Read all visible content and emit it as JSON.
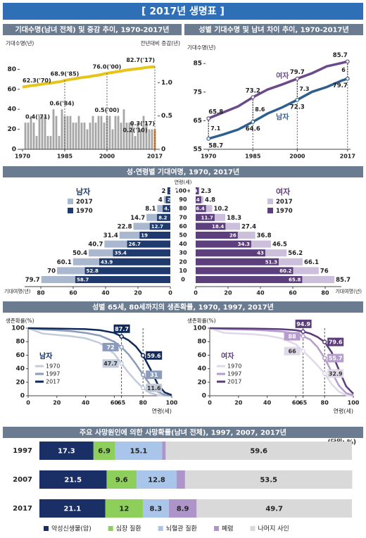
{
  "title": "[ 2017년 생명표 ]",
  "chart_data": [
    {
      "type": "combo",
      "title": "기대수명(남녀 전체) 및 증감 추이, 1970-2017년",
      "ylabel": "기대수명(년)",
      "y2label": "전년대비 증감(년)",
      "x": [
        1970,
        1971,
        1972,
        1973,
        1974,
        1975,
        1976,
        1977,
        1978,
        1979,
        1980,
        1981,
        1982,
        1983,
        1984,
        1985,
        1986,
        1987,
        1988,
        1989,
        1990,
        1991,
        1992,
        1993,
        1994,
        1995,
        1996,
        1997,
        1998,
        1999,
        2000,
        2001,
        2002,
        2003,
        2004,
        2005,
        2006,
        2007,
        2008,
        2009,
        2010,
        2011,
        2012,
        2013,
        2014,
        2015,
        2016,
        2017
      ],
      "xlim": [
        1969,
        2018
      ],
      "xticks": [
        1970,
        1985,
        2000,
        2017
      ],
      "ylim": [
        0,
        100
      ],
      "yticks": [
        0,
        20,
        40,
        60,
        80
      ],
      "y2lim": [
        0,
        1.5
      ],
      "y2ticks": [
        0,
        0.5,
        {
          "value": 1,
          "label": "1.0"
        }
      ],
      "last_color": "#e07b28",
      "series": [
        {
          "kind": "line",
          "color": "#e8c41a",
          "values": [
            62.3,
            62.7,
            63.1,
            63.6,
            64.0,
            64.2,
            64.7,
            65.2,
            65.7,
            65.9,
            66.1,
            66.7,
            67.2,
            67.4,
            68.0,
            68.9,
            69.4,
            69.9,
            70.3,
            70.7,
            71.3,
            71.7,
            72.1,
            72.4,
            72.8,
            73.3,
            73.7,
            74.2,
            74.7,
            75.5,
            76.0,
            76.5,
            76.8,
            77.3,
            77.8,
            78.2,
            78.8,
            79.2,
            79.6,
            80.0,
            80.2,
            80.6,
            80.9,
            81.4,
            81.8,
            82.1,
            82.4,
            82.7
          ],
          "value_labels": [
            "62.3('70)",
            null,
            null,
            null,
            null,
            null,
            null,
            null,
            null,
            null,
            null,
            null,
            null,
            null,
            null,
            "68.9('85)",
            null,
            null,
            null,
            null,
            null,
            null,
            null,
            null,
            null,
            null,
            null,
            null,
            null,
            null,
            "76.0('00)",
            null,
            null,
            null,
            null,
            null,
            null,
            null,
            null,
            null,
            null,
            null,
            null,
            null,
            null,
            null,
            null,
            "82.7('17)"
          ]
        },
        {
          "kind": "bar",
          "axis": "y2",
          "color": "#a6a6a6",
          "values": [
            null,
            0.4,
            0.4,
            0.5,
            0.4,
            0.2,
            0.5,
            0.5,
            0.5,
            0.2,
            0.2,
            0.6,
            0.5,
            0.2,
            0.6,
            0.5,
            0.5,
            0.5,
            0.4,
            0.4,
            0.5,
            0.4,
            0.4,
            0.3,
            0.4,
            0.5,
            0.4,
            0.5,
            0.5,
            0.4,
            0.5,
            0.5,
            0.3,
            0.5,
            0.5,
            0.4,
            0.6,
            0.4,
            0.4,
            0.4,
            0.2,
            0.4,
            0.3,
            0.5,
            0.4,
            0.3,
            0.3,
            0.3
          ],
          "value_labels": [
            null,
            "0.4('71)",
            null,
            null,
            null,
            null,
            null,
            null,
            null,
            null,
            null,
            null,
            null,
            null,
            "0.6('84)",
            null,
            null,
            null,
            null,
            null,
            null,
            null,
            null,
            null,
            null,
            null,
            null,
            null,
            null,
            null,
            "0.5('00)",
            null,
            null,
            null,
            null,
            null,
            null,
            null,
            null,
            null,
            "0.2('10)",
            null,
            null,
            null,
            null,
            null,
            null,
            "0.3('17)"
          ]
        }
      ]
    },
    {
      "type": "line",
      "title": "성별 기대수명 및 남녀 차이 추이, 1970-2017년",
      "ylabel": "기대수명(년)",
      "x": [
        1970,
        1975,
        1980,
        1985,
        1990,
        1995,
        2000,
        2005,
        2010,
        2015,
        2017
      ],
      "xlim": [
        1969,
        2018
      ],
      "xticks": [
        1970,
        1985,
        2000,
        2017
      ],
      "ylim": [
        55,
        88
      ],
      "yticks": [
        55,
        65,
        75,
        85
      ],
      "series": [
        {
          "name": "여자",
          "color": "#6b4a8a",
          "values": [
            65.8,
            67.9,
            70.0,
            73.2,
            75.9,
            77.7,
            79.7,
            81.6,
            84.0,
            85.2,
            85.7
          ]
        },
        {
          "name": "남자",
          "color": "#2f5f8f",
          "values": [
            58.7,
            60.2,
            61.9,
            64.6,
            67.5,
            69.7,
            72.3,
            75.1,
            76.8,
            79.0,
            79.7
          ]
        }
      ],
      "differences": [
        7.1,
        8.6,
        7.3,
        6.0
      ]
    },
    {
      "type": "pyramid",
      "title": "성·연령별 기대여명, 1970, 2017년",
      "category_label": "연령(세)",
      "xlabel": "기대여명(년)",
      "categories": [
        "100+",
        "90",
        "80",
        "70",
        "60",
        "50",
        "40",
        "30",
        "20",
        "10",
        "0"
      ],
      "xlim": [
        0,
        90
      ],
      "xticks": [
        0,
        20,
        40,
        60,
        80
      ],
      "groups": [
        {
          "name": "남자",
          "series": [
            {
              "name": "2017",
              "color": "#a9b7cf",
              "values": [
                2.0,
                4.0,
                8.1,
                14.7,
                22.8,
                31.4,
                40.7,
                50.4,
                60.1,
                70.0,
                79.7
              ]
            },
            {
              "name": "1970",
              "color": "#1f3a6e",
              "values": [
                1.7,
                2.8,
                4.7,
                8.2,
                12.7,
                19.0,
                26.7,
                35.4,
                43.9,
                52.8,
                58.7
              ]
            }
          ]
        },
        {
          "name": "여자",
          "series": [
            {
              "name": "2017",
              "color": "#cbbfdb",
              "values": [
                2.3,
                4.8,
                10.2,
                18.3,
                27.4,
                36.8,
                46.5,
                56.2,
                66.1,
                76.0,
                85.7
              ]
            },
            {
              "name": "1970",
              "color": "#5e3f7d",
              "values": [
                1.9,
                3.4,
                6.4,
                11.7,
                18.4,
                26.0,
                34.3,
                43.0,
                51.3,
                60.2,
                65.8
              ]
            }
          ]
        }
      ]
    },
    {
      "type": "line",
      "title": "성별 65세, 80세까지의 생존확률, 1970, 1997, 2017년",
      "panel": "남자",
      "ylabel": "생존확률(%)",
      "xlabel": "연령(세)",
      "x": [
        0,
        10,
        20,
        30,
        40,
        50,
        60,
        65,
        70,
        75,
        80,
        85,
        90,
        95,
        100
      ],
      "xlim": [
        0,
        100
      ],
      "xticks": [
        0,
        20,
        40,
        60,
        65,
        80,
        100
      ],
      "ylim": [
        0,
        100
      ],
      "yticks": [
        0,
        20,
        40,
        60,
        80,
        100
      ],
      "marker_ages": [
        65,
        80
      ],
      "series": [
        {
          "name": "1970",
          "color": "#c3cbda",
          "values": [
            100,
            92,
            90,
            88,
            85,
            78,
            62,
            47.7,
            34,
            22,
            11.6,
            4,
            1,
            0,
            0
          ]
        },
        {
          "name": "1997",
          "color": "#8a9bbb",
          "values": [
            100,
            98,
            97,
            95.5,
            93,
            89,
            80,
            72.0,
            61,
            47,
            31.0,
            16,
            6,
            1.5,
            0
          ]
        },
        {
          "name": "2017",
          "color": "#10295c",
          "values": [
            100,
            99.6,
            99.4,
            99,
            98.5,
            97,
            93,
            87.7,
            82,
            73,
            59.6,
            40,
            18,
            5,
            1
          ]
        }
      ]
    },
    {
      "type": "line",
      "panel": "여자",
      "xlabel": "연령(세)",
      "ylabel": "생존확률(%)",
      "x": [
        0,
        10,
        20,
        30,
        40,
        50,
        60,
        65,
        70,
        75,
        80,
        85,
        90,
        95,
        100
      ],
      "xlim": [
        0,
        100
      ],
      "xticks": [
        0,
        20,
        40,
        60,
        65,
        80,
        100
      ],
      "ylim": [
        0,
        100
      ],
      "yticks": [
        0,
        20,
        40,
        60,
        80,
        100
      ],
      "marker_ages": [
        65,
        80
      ],
      "series": [
        {
          "name": "1970",
          "color": "#e0d8e9",
          "values": [
            100,
            93,
            92,
            91,
            89,
            85,
            76,
            66.0,
            56,
            45,
            32.9,
            17,
            6,
            1,
            0
          ]
        },
        {
          "name": "1997",
          "color": "#b69ccd",
          "values": [
            100,
            98.5,
            98,
            97.5,
            96.5,
            95,
            92,
            88.0,
            83,
            72,
            55.7,
            35,
            15,
            4,
            0.5
          ]
        },
        {
          "name": "2017",
          "color": "#5a3c7a",
          "values": [
            100,
            99.7,
            99.6,
            99.4,
            99,
            98.4,
            97,
            94.9,
            92,
            87,
            79.6,
            64,
            38,
            14,
            3
          ]
        }
      ]
    },
    {
      "type": "stacked",
      "title": "주요 사망원인에 의한 사망확률(남녀 전체), 1997, 2007, 2017년",
      "unit": "(단위: %)",
      "categories": [
        "1997",
        "2007",
        "2017"
      ],
      "xlim": [
        0,
        100
      ],
      "series": [
        {
          "name": "악성신생물(암)",
          "color": "#1a2f66",
          "values": [
            17.3,
            21.5,
            21.1
          ]
        },
        {
          "name": "심장 질환",
          "color": "#8dcf5a",
          "values": [
            6.9,
            9.6,
            12.0
          ]
        },
        {
          "name": "뇌혈관 질환",
          "color": "#a9c6ea",
          "values": [
            15.1,
            12.8,
            8.3
          ]
        },
        {
          "name": "폐렴",
          "color": "#ad95c9",
          "values": [
            1.1,
            2.7,
            8.9
          ]
        },
        {
          "name": "나머지 사인",
          "color": "#d9d9d9",
          "values": [
            59.6,
            53.5,
            49.7
          ]
        }
      ]
    }
  ]
}
